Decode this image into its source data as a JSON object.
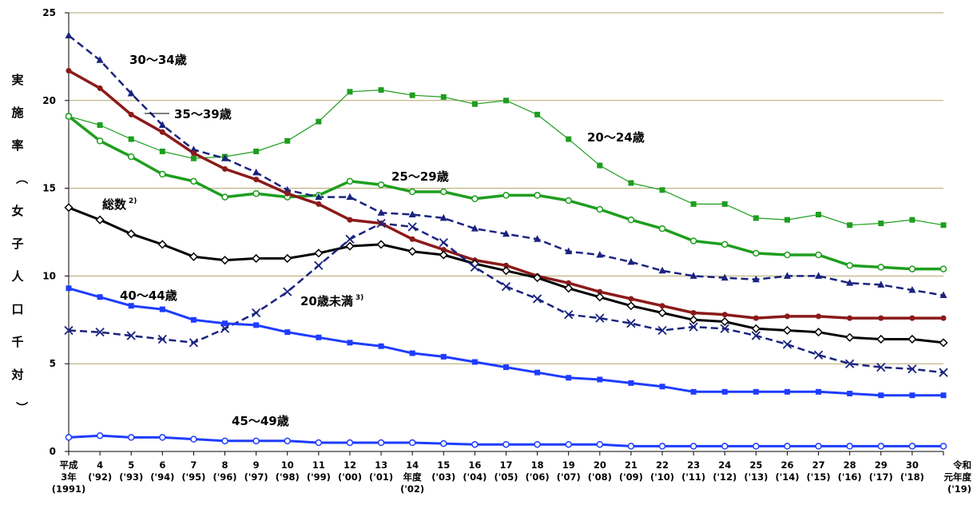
{
  "chart_data": {
    "type": "line",
    "ylabel": "実施率（女子人口千対）",
    "ylim": [
      0,
      25
    ],
    "yticks": [
      0,
      5,
      10,
      15,
      20,
      25
    ],
    "grid": true,
    "x_labels": [
      [
        "平成",
        "3年",
        "(1991)"
      ],
      [
        "4",
        "('92)"
      ],
      [
        "5",
        "('93)"
      ],
      [
        "6",
        "('94)"
      ],
      [
        "7",
        "('95)"
      ],
      [
        "8",
        "('96)"
      ],
      [
        "9",
        "('97)"
      ],
      [
        "10",
        "('98)"
      ],
      [
        "11",
        "('99)"
      ],
      [
        "12",
        "('00)"
      ],
      [
        "13",
        "('01)"
      ],
      [
        "14",
        "年度",
        "('02)"
      ],
      [
        "15",
        "('03)"
      ],
      [
        "16",
        "('04)"
      ],
      [
        "17",
        "('05)"
      ],
      [
        "18",
        "('06)"
      ],
      [
        "19",
        "('07)"
      ],
      [
        "20",
        "('08)"
      ],
      [
        "21",
        "('09)"
      ],
      [
        "22",
        "('10)"
      ],
      [
        "23",
        "('11)"
      ],
      [
        "24",
        "('12)"
      ],
      [
        "25",
        "('13)"
      ],
      [
        "26",
        "('14)"
      ],
      [
        "27",
        "('15)"
      ],
      [
        "28",
        "('16)"
      ],
      [
        "29",
        "('17)"
      ],
      [
        "30",
        "('18)"
      ],
      [
        "令和",
        "元年度",
        "('19)"
      ]
    ],
    "series": [
      {
        "name": "20〜24歳",
        "color": "#1e9e1e",
        "dash": "solid",
        "marker": "square",
        "width": 1.2,
        "values": [
          19.1,
          18.6,
          17.8,
          17.1,
          16.7,
          16.8,
          17.1,
          17.7,
          18.8,
          20.5,
          20.6,
          20.3,
          20.2,
          19.8,
          20.0,
          19.2,
          17.8,
          16.3,
          15.3,
          14.9,
          14.1,
          14.1,
          13.3,
          13.2,
          13.5,
          12.9,
          13.0,
          13.2,
          12.9
        ]
      },
      {
        "name": "25〜29歳",
        "color": "#1e9e1e",
        "dash": "solid",
        "marker": "circle",
        "width": 3.5,
        "values": [
          19.1,
          17.7,
          16.8,
          15.8,
          15.4,
          14.5,
          14.7,
          14.5,
          14.6,
          15.4,
          15.2,
          14.8,
          14.8,
          14.4,
          14.6,
          14.6,
          14.3,
          13.8,
          13.2,
          12.7,
          12.0,
          11.8,
          11.3,
          11.2,
          11.2,
          10.6,
          10.5,
          10.4,
          10.4
        ]
      },
      {
        "name": "30〜34歳",
        "color": "#1a237e",
        "dash": "dash",
        "marker": "triangle",
        "width": 2.5,
        "values": [
          23.7,
          22.3,
          20.4,
          18.6,
          17.2,
          16.7,
          15.9,
          14.9,
          14.5,
          14.5,
          13.6,
          13.5,
          13.3,
          12.7,
          12.4,
          12.1,
          11.4,
          11.2,
          10.8,
          10.3,
          10.0,
          9.9,
          9.8,
          10.0,
          10.0,
          9.6,
          9.5,
          9.2,
          8.9
        ]
      },
      {
        "name": "35〜39歳",
        "color": "#8b1a1a",
        "dash": "solid",
        "marker": "circle-filled",
        "width": 3.5,
        "values": [
          21.7,
          20.7,
          19.2,
          18.2,
          17.0,
          16.1,
          15.5,
          14.7,
          14.1,
          13.2,
          13.0,
          12.1,
          11.5,
          10.9,
          10.6,
          10.0,
          9.6,
          9.1,
          8.7,
          8.3,
          7.9,
          7.8,
          7.6,
          7.7,
          7.7,
          7.6,
          7.6,
          7.6,
          7.6
        ]
      },
      {
        "name": "総数",
        "sup": "2)",
        "color": "#000000",
        "dash": "solid",
        "marker": "diamond",
        "width": 3,
        "values": [
          13.9,
          13.2,
          12.4,
          11.8,
          11.1,
          10.9,
          11.0,
          11.0,
          11.3,
          11.7,
          11.8,
          11.4,
          11.2,
          10.7,
          10.3,
          9.9,
          9.3,
          8.8,
          8.3,
          7.9,
          7.5,
          7.4,
          7.0,
          6.9,
          6.8,
          6.5,
          6.4,
          6.4,
          6.2
        ]
      },
      {
        "name": "20歳未満",
        "sup": "3)",
        "color": "#1a237e",
        "dash": "dash",
        "marker": "x",
        "width": 2.5,
        "values": [
          6.9,
          6.8,
          6.6,
          6.4,
          6.2,
          7.0,
          7.9,
          9.1,
          10.6,
          12.1,
          13.0,
          12.8,
          11.9,
          10.5,
          9.4,
          8.7,
          7.8,
          7.6,
          7.3,
          6.9,
          7.1,
          7.0,
          6.6,
          6.1,
          5.5,
          5.0,
          4.8,
          4.7,
          4.5
        ]
      },
      {
        "name": "40〜44歳",
        "color": "#1e3cff",
        "dash": "solid",
        "marker": "square",
        "width": 3,
        "values": [
          9.3,
          8.8,
          8.3,
          8.1,
          7.5,
          7.3,
          7.2,
          6.8,
          6.5,
          6.2,
          6.0,
          5.6,
          5.4,
          5.1,
          4.8,
          4.5,
          4.2,
          4.1,
          3.9,
          3.7,
          3.4,
          3.4,
          3.4,
          3.4,
          3.4,
          3.3,
          3.2,
          3.2,
          3.2
        ]
      },
      {
        "name": "45〜49歳",
        "color": "#1e3cff",
        "dash": "solid",
        "marker": "circle",
        "width": 3,
        "values": [
          0.8,
          0.9,
          0.8,
          0.8,
          0.7,
          0.6,
          0.6,
          0.6,
          0.5,
          0.5,
          0.5,
          0.5,
          0.45,
          0.4,
          0.4,
          0.4,
          0.4,
          0.4,
          0.3,
          0.3,
          0.3,
          0.3,
          0.3,
          0.3,
          0.3,
          0.3,
          0.3,
          0.3,
          0.3
        ]
      }
    ]
  }
}
